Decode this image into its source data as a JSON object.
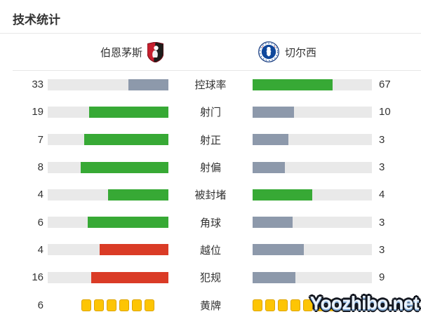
{
  "title": "技术统计",
  "watermark": {
    "text": "Yoozhibo.net"
  },
  "teams": {
    "home": {
      "name": "伯恩茅斯",
      "crest_icon": "bournemouth-crest"
    },
    "away": {
      "name": "切尔西",
      "crest_icon": "chelsea-crest"
    }
  },
  "colors": {
    "green": "#37a935",
    "slate": "#8d99ab",
    "red": "#da3b26",
    "track": "#e9e9e9",
    "yellow": "#fdc504",
    "yellow_border": "#dda400",
    "text": "#333333",
    "divider": "#e7e7e7"
  },
  "rows": [
    {
      "type": "bar",
      "label": "控球率",
      "home": 33,
      "away": 67,
      "home_color": "slate",
      "away_color": "green"
    },
    {
      "type": "bar",
      "label": "射门",
      "home": 19,
      "away": 10,
      "home_color": "green",
      "away_color": "slate"
    },
    {
      "type": "bar",
      "label": "射正",
      "home": 7,
      "away": 3,
      "home_color": "green",
      "away_color": "slate"
    },
    {
      "type": "bar",
      "label": "射偏",
      "home": 8,
      "away": 3,
      "home_color": "green",
      "away_color": "slate"
    },
    {
      "type": "bar",
      "label": "被封堵",
      "home": 4,
      "away": 4,
      "home_color": "green",
      "away_color": "green"
    },
    {
      "type": "bar",
      "label": "角球",
      "home": 6,
      "away": 3,
      "home_color": "green",
      "away_color": "slate"
    },
    {
      "type": "bar",
      "label": "越位",
      "home": 4,
      "away": 3,
      "home_color": "red",
      "away_color": "slate"
    },
    {
      "type": "bar",
      "label": "犯规",
      "home": 16,
      "away": 9,
      "home_color": "red",
      "away_color": "slate"
    },
    {
      "type": "cards",
      "label": "黄牌",
      "home": 6,
      "away": 8
    }
  ],
  "chart_data": {
    "type": "bar",
    "title": "技术统计",
    "orientation": "mirrored-horizontal",
    "categories": [
      "控球率",
      "射门",
      "射正",
      "射偏",
      "被封堵",
      "角球",
      "越位",
      "犯规",
      "黄牌"
    ],
    "series": [
      {
        "name": "伯恩茅斯",
        "values": [
          33,
          19,
          7,
          8,
          4,
          6,
          4,
          16,
          6
        ]
      },
      {
        "name": "切尔西",
        "values": [
          67,
          10,
          3,
          3,
          4,
          3,
          3,
          9,
          8
        ]
      }
    ],
    "notes": "Each bar fill = value / (home+away) of that row; 控球率 is percent; 黄牌 rendered as yellow-card icons; winner bar green, loser slate, negative-stat leader red"
  }
}
